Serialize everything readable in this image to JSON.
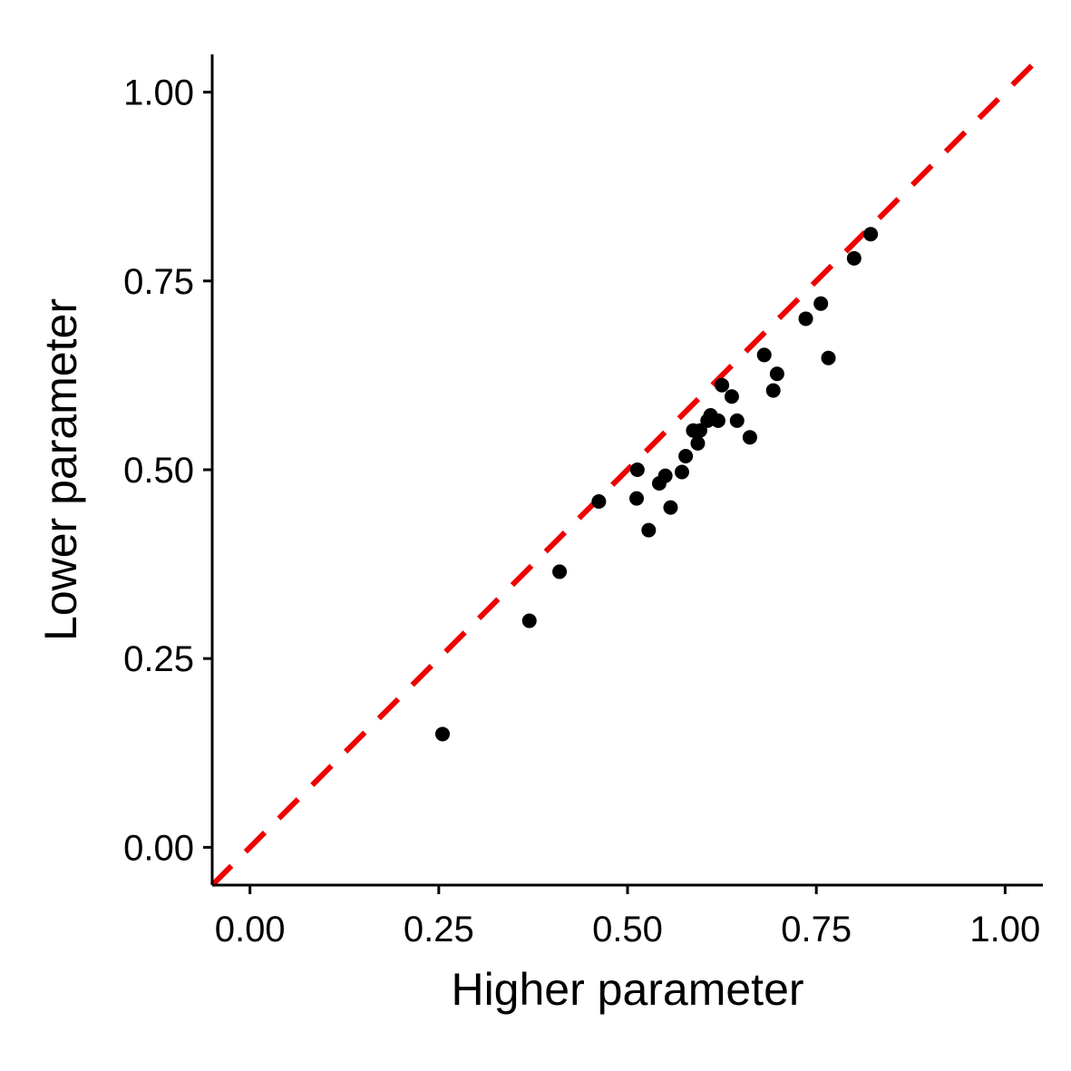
{
  "chart_data": {
    "type": "scatter",
    "xlabel": "Higher parameter",
    "ylabel": "Lower parameter",
    "xlim": [
      -0.05,
      1.05
    ],
    "ylim": [
      -0.05,
      1.05
    ],
    "x_ticks": [
      0.0,
      0.25,
      0.5,
      0.75,
      1.0
    ],
    "y_ticks": [
      0.0,
      0.25,
      0.5,
      0.75,
      1.0
    ],
    "x_tick_labels": [
      "0.00",
      "0.25",
      "0.50",
      "0.75",
      "1.00"
    ],
    "y_tick_labels": [
      "0.00",
      "0.25",
      "0.50",
      "0.75",
      "1.00"
    ],
    "grid": false,
    "reference_line": {
      "slope": 1,
      "intercept": 0,
      "style": "dashed",
      "color": "#ee0000"
    },
    "point_color": "#000000",
    "points": [
      {
        "x": 0.255,
        "y": 0.15
      },
      {
        "x": 0.37,
        "y": 0.3
      },
      {
        "x": 0.41,
        "y": 0.365
      },
      {
        "x": 0.462,
        "y": 0.458
      },
      {
        "x": 0.512,
        "y": 0.462
      },
      {
        "x": 0.513,
        "y": 0.5
      },
      {
        "x": 0.528,
        "y": 0.42
      },
      {
        "x": 0.542,
        "y": 0.482
      },
      {
        "x": 0.55,
        "y": 0.492
      },
      {
        "x": 0.557,
        "y": 0.45
      },
      {
        "x": 0.572,
        "y": 0.497
      },
      {
        "x": 0.577,
        "y": 0.518
      },
      {
        "x": 0.587,
        "y": 0.552
      },
      {
        "x": 0.593,
        "y": 0.535
      },
      {
        "x": 0.596,
        "y": 0.552
      },
      {
        "x": 0.606,
        "y": 0.565
      },
      {
        "x": 0.61,
        "y": 0.572
      },
      {
        "x": 0.62,
        "y": 0.565
      },
      {
        "x": 0.625,
        "y": 0.612
      },
      {
        "x": 0.638,
        "y": 0.597
      },
      {
        "x": 0.645,
        "y": 0.565
      },
      {
        "x": 0.662,
        "y": 0.543
      },
      {
        "x": 0.681,
        "y": 0.652
      },
      {
        "x": 0.693,
        "y": 0.605
      },
      {
        "x": 0.698,
        "y": 0.627
      },
      {
        "x": 0.736,
        "y": 0.7
      },
      {
        "x": 0.756,
        "y": 0.72
      },
      {
        "x": 0.766,
        "y": 0.648
      },
      {
        "x": 0.8,
        "y": 0.78
      },
      {
        "x": 0.822,
        "y": 0.812
      }
    ]
  }
}
